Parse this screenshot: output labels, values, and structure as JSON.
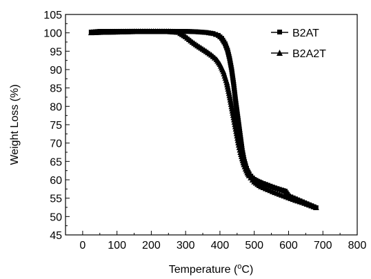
{
  "chart_data": {
    "type": "scatter",
    "title": "",
    "xlabel": "Temperature",
    "xlabel_unit_prefix": "(",
    "xlabel_unit_sup": "o",
    "xlabel_unit_suffix": "C)",
    "ylabel": "Weight Loss (%)",
    "xlim": [
      -50,
      800
    ],
    "ylim": [
      45,
      105
    ],
    "xticks": [
      0,
      100,
      200,
      300,
      400,
      500,
      600,
      700,
      800
    ],
    "yticks": [
      45,
      50,
      55,
      60,
      65,
      70,
      75,
      80,
      85,
      90,
      95,
      100,
      105
    ],
    "legend_position": "top-right",
    "series": [
      {
        "name": "B2AT",
        "marker": "square",
        "x": [
          25,
          50,
          100,
          150,
          200,
          250,
          300,
          330,
          360,
          380,
          395,
          405,
          415,
          422,
          428,
          434,
          440,
          445,
          450,
          455,
          460,
          465,
          470,
          475,
          480,
          485,
          490,
          495,
          500,
          510,
          520,
          540,
          560,
          580,
          590,
          600,
          620,
          640,
          660,
          680
        ],
        "y": [
          100.2,
          100.4,
          100.4,
          100.4,
          100.4,
          100.4,
          100.4,
          100.3,
          100.1,
          99.8,
          99.3,
          98.5,
          97.0,
          95.3,
          93.0,
          90.0,
          86.0,
          82.0,
          78.5,
          75.0,
          71.5,
          68.0,
          65.5,
          63.8,
          62.5,
          61.6,
          61.0,
          60.5,
          60.1,
          59.6,
          59.2,
          58.5,
          57.8,
          57.2,
          56.9,
          55.6,
          54.8,
          54.0,
          53.2,
          52.4
        ]
      },
      {
        "name": "B2A2T",
        "marker": "triangle",
        "x": [
          25,
          50,
          100,
          150,
          200,
          250,
          280,
          300,
          320,
          340,
          360,
          375,
          390,
          400,
          410,
          420,
          428,
          434,
          440,
          445,
          450,
          455,
          460,
          465,
          470,
          475,
          480,
          485,
          490,
          495,
          500,
          510,
          520,
          540,
          560,
          580,
          600,
          620,
          640,
          660,
          680
        ],
        "y": [
          100.1,
          100.2,
          100.3,
          100.4,
          100.4,
          100.4,
          100.2,
          99.0,
          97.5,
          96.2,
          95.0,
          94.0,
          92.8,
          91.5,
          89.5,
          86.5,
          83.0,
          80.0,
          77.0,
          74.5,
          72.0,
          69.5,
          67.5,
          65.8,
          64.2,
          63.0,
          62.0,
          61.2,
          60.6,
          60.0,
          59.5,
          58.8,
          58.2,
          57.4,
          56.6,
          55.9,
          55.2,
          54.5,
          53.9,
          53.2,
          52.5
        ]
      }
    ]
  }
}
